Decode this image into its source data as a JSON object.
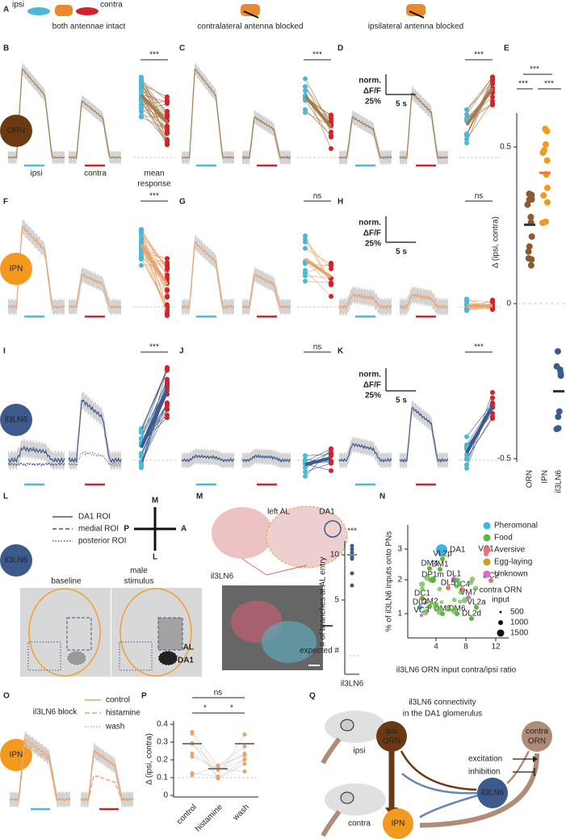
{
  "letters": [
    "A",
    "B",
    "C",
    "D",
    "E",
    "F",
    "G",
    "H",
    "I",
    "J",
    "K",
    "L",
    "M",
    "N",
    "O",
    "P",
    "Q"
  ],
  "header": {
    "ipsi": "ipsi",
    "contra": "contra",
    "conditions": [
      "both antennae intact",
      "contralateral antenna blocked",
      "ipsilateral antenna blocked"
    ]
  },
  "row_labels": {
    "ipsi": "ipsi",
    "contra": "contra",
    "mean_response": [
      "mean",
      "response"
    ]
  },
  "scale_bar": {
    "lines": [
      "norm.",
      "ΔF/F",
      "25%"
    ],
    "time": "5 s"
  },
  "rows": [
    {
      "cell": "ORN",
      "significance": [
        "***",
        "***",
        "***"
      ]
    },
    {
      "cell": "IPN",
      "significance": [
        "***",
        "ns",
        "ns"
      ]
    },
    {
      "cell": "il3LN6",
      "significance": [
        "***",
        "ns",
        "***"
      ]
    }
  ],
  "panel_e": {
    "significance": [
      "***",
      "***",
      "***"
    ],
    "y_label": "Δ (ipsi, contra)",
    "y_ticks": [
      0.5,
      0,
      -0.5
    ],
    "x_labels": [
      "ORN",
      "IPN",
      "il3LN6"
    ]
  },
  "panel_l": {
    "legend": [
      "DA1 ROI",
      "medial ROI",
      "posterior ROI"
    ],
    "compass": [
      "M",
      "P",
      "A",
      "L"
    ],
    "cell": "il3LN6",
    "baseline": "baseline",
    "stimulus": [
      "male",
      "stimulus"
    ],
    "regions": [
      "AL",
      "DA1"
    ]
  },
  "panel_m": {
    "labels": [
      "left AL",
      "DA1",
      "il3LN6"
    ],
    "significance": "***",
    "y_label": "# of branches at AL entry",
    "y_ticks": [
      10,
      5
    ],
    "expected": "expected #",
    "x_label": "il3LN6"
  },
  "panel_n": {
    "legend": [
      "Pheromonal",
      "Food",
      "Aversive",
      "Egg-laying",
      "Unknown"
    ],
    "size_title": [
      "contra ORN",
      "input"
    ],
    "size_legend": [
      500,
      1000,
      1500
    ],
    "y_label": "% of il3LN6 inputs onto PNs",
    "x_label": "il3LN6 ORN input contra/ipsi ratio",
    "x_ticks": [
      4,
      8,
      12
    ],
    "y_ticks": [
      1,
      2,
      3
    ],
    "point_labels": [
      "DA1",
      "VL2p",
      "DM4",
      "DM1",
      "DP1m",
      "DC1",
      "DM2",
      "DL3",
      "VC3",
      "DM3",
      "DM6",
      "DL2d",
      "VL2a",
      "DL1",
      "DL5",
      "DC4",
      "VM7",
      "DC2",
      "VC1"
    ]
  },
  "panel_o": {
    "title": "il3LN6 block",
    "legend": [
      "control",
      "histamine",
      "wash"
    ],
    "cell": "IPN"
  },
  "panel_p": {
    "significance": [
      "ns",
      "*",
      "*"
    ],
    "y_label": "Δ (ipsi, contra)",
    "y_ticks": [
      0.4,
      0.3,
      0.2,
      0.1,
      0
    ],
    "x_labels": [
      "control",
      "histamine",
      "wash"
    ]
  },
  "panel_q": {
    "title": [
      "il3LN6 connectivity",
      "in the DA1 glomerulus"
    ],
    "brains": [
      "ipsi",
      "contra"
    ],
    "nodes": {
      "ipsi_orn": [
        "ipsi",
        "ORN"
      ],
      "contra_orn": [
        "contra",
        "ORN"
      ],
      "ln": "il3LN6",
      "pn": "IPN"
    },
    "legend": [
      "excitation",
      "inhibition"
    ]
  }
}
